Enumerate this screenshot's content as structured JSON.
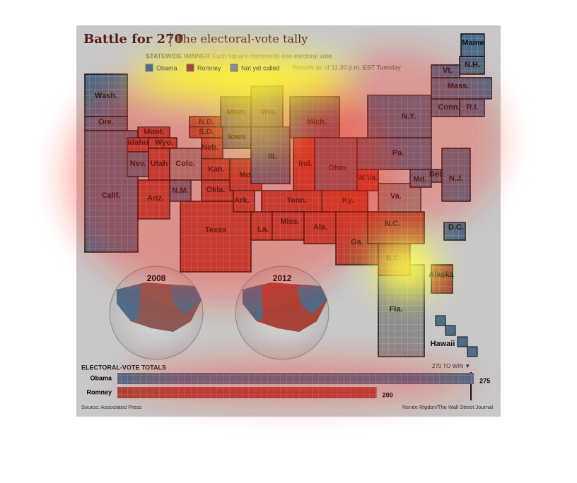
{
  "header": {
    "title": "Battle for 270",
    "subtitle": "The electoral-vote tally"
  },
  "legend": {
    "heading": "STATEWIDE WINNER",
    "note": "Each square represents one electoral vote.",
    "items": [
      {
        "label": "Obama",
        "winner": "obama"
      },
      {
        "label": "Romney",
        "winner": "romney"
      },
      {
        "label": "Not yet called",
        "winner": "uncalled"
      }
    ],
    "timestamp": "Results as of 11:30 p.m. EST Tuesday"
  },
  "states": [
    {
      "label": "Wash.",
      "winner": "obama"
    },
    {
      "label": "Ore.",
      "winner": "obama"
    },
    {
      "label": "Calif.",
      "winner": "obama"
    },
    {
      "label": "Mont.",
      "winner": "romney"
    },
    {
      "label": "Idaho",
      "winner": "romney"
    },
    {
      "label": "Wyo.",
      "winner": "romney"
    },
    {
      "label": "Nev.",
      "winner": "obama"
    },
    {
      "label": "Utah",
      "winner": "romney"
    },
    {
      "label": "Colo.",
      "winner": "uncalled"
    },
    {
      "label": "N.M.",
      "winner": "obama"
    },
    {
      "label": "Ariz.",
      "winner": "romney"
    },
    {
      "label": "N.D.",
      "winner": "romney"
    },
    {
      "label": "S.D.",
      "winner": "romney"
    },
    {
      "label": "Neb.",
      "winner": "romney"
    },
    {
      "label": "Kan.",
      "winner": "romney"
    },
    {
      "label": "Okla.",
      "winner": "romney"
    },
    {
      "label": "Texas",
      "winner": "romney"
    },
    {
      "label": "Minn.",
      "winner": "obama"
    },
    {
      "label": "Iowa",
      "winner": "obama"
    },
    {
      "label": "Mo.",
      "winner": "romney"
    },
    {
      "label": "Ark.",
      "winner": "romney"
    },
    {
      "label": "La.",
      "winner": "romney"
    },
    {
      "label": "Wis.",
      "winner": "obama"
    },
    {
      "label": "Ill.",
      "winner": "obama"
    },
    {
      "label": "Mich.",
      "winner": "obama"
    },
    {
      "label": "Ind.",
      "winner": "romney"
    },
    {
      "label": "Ohio",
      "winner": "obama"
    },
    {
      "label": "Ky.",
      "winner": "romney"
    },
    {
      "label": "Tenn.",
      "winner": "romney"
    },
    {
      "label": "Miss.",
      "winner": "romney"
    },
    {
      "label": "Ala.",
      "winner": "romney"
    },
    {
      "label": "Ga.",
      "winner": "romney"
    },
    {
      "label": "Fla.",
      "winner": "uncalled"
    },
    {
      "label": "S.C.",
      "winner": "romney"
    },
    {
      "label": "N.C.",
      "winner": "romney"
    },
    {
      "label": "Va.",
      "winner": "uncalled"
    },
    {
      "label": "W.Va.",
      "winner": "romney"
    },
    {
      "label": "Pa.",
      "winner": "obama"
    },
    {
      "label": "Md.",
      "winner": "obama"
    },
    {
      "label": "Del.",
      "winner": "obama"
    },
    {
      "label": "N.J.",
      "winner": "obama"
    },
    {
      "label": "N.Y.",
      "winner": "obama"
    },
    {
      "label": "Conn.",
      "winner": "obama"
    },
    {
      "label": "R.I.",
      "winner": "obama"
    },
    {
      "label": "Mass.",
      "winner": "obama"
    },
    {
      "label": "Vt.",
      "winner": "obama"
    },
    {
      "label": "N.H.",
      "winner": "obama"
    },
    {
      "label": "Maine",
      "winner": "obama"
    },
    {
      "label": "D.C.",
      "winner": "obama"
    },
    {
      "label": "Alaska",
      "winner": "romney"
    },
    {
      "label": "Hawaii",
      "winner": "obama"
    }
  ],
  "insets": [
    "2008",
    "2012"
  ],
  "totals": {
    "heading": "ELECTORAL-VOTE TOTALS",
    "win_label": "270 TO WIN ▼",
    "candidates": [
      {
        "name": "Obama",
        "votes": 275,
        "winner": "obama"
      },
      {
        "name": "Romney",
        "votes": 200,
        "winner": "romney"
      }
    ]
  },
  "footer": {
    "source": "Source: Associated Press",
    "credit": "Renée Rigdon/The Wall Street Journal"
  }
}
